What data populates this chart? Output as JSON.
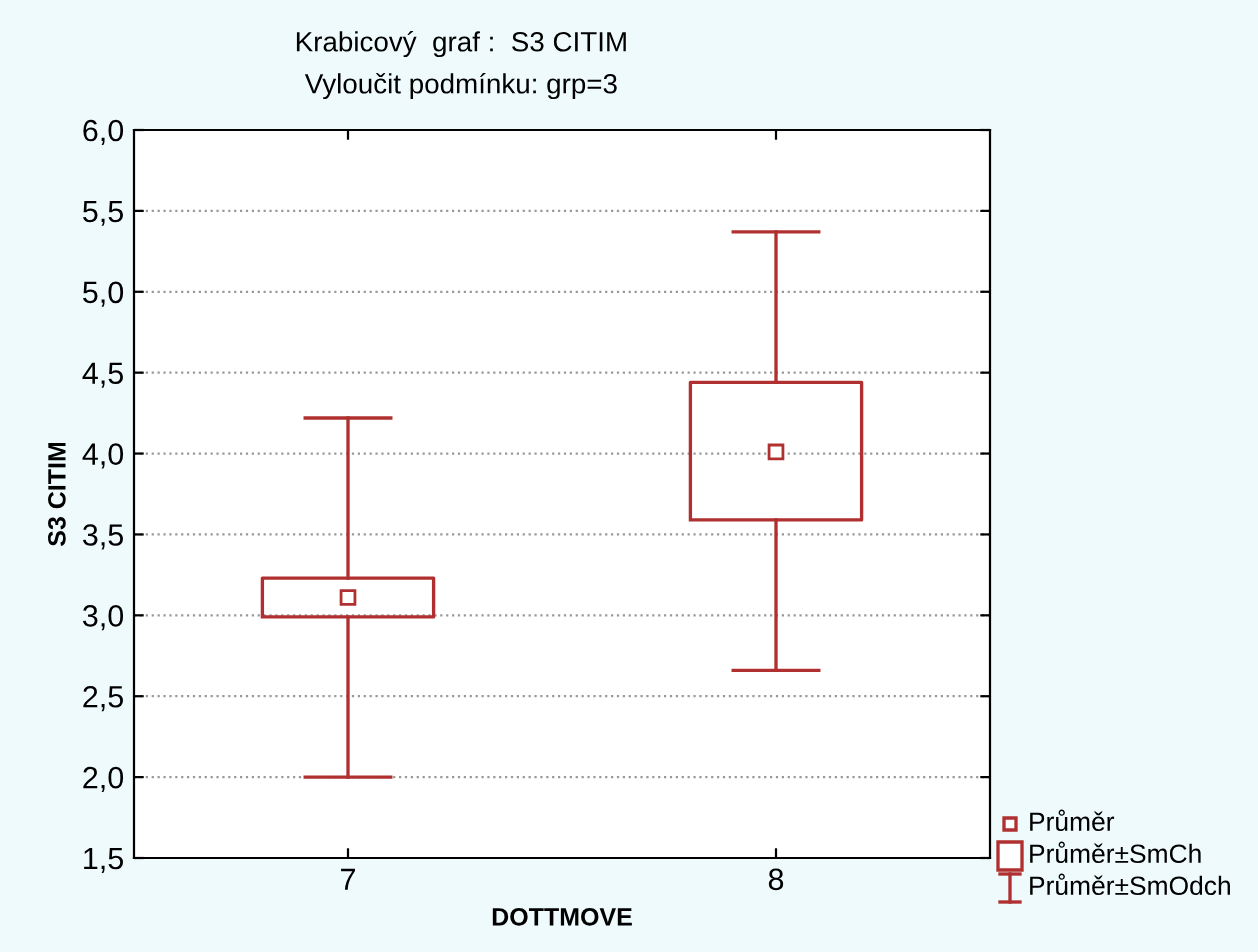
{
  "chart_data": {
    "type": "box",
    "title": "Krabicový  graf :  S3 CITIM",
    "subtitle": "Vyloučit podmínku: grp=3",
    "xlabel": "DOTTMOVE",
    "ylabel": "S3 CITIM",
    "categories": [
      "7",
      "8"
    ],
    "color": "#b03030",
    "boxes": [
      {
        "low": 2.0,
        "q1": 2.99,
        "median": 3.11,
        "q3": 3.23,
        "high": 4.22
      },
      {
        "low": 2.66,
        "q1": 3.59,
        "median": 4.01,
        "q3": 4.44,
        "high": 5.37
      }
    ],
    "ylim": [
      1.5,
      6.0
    ],
    "yticks": [
      {
        "value": 1.5,
        "label": "1,5"
      },
      {
        "value": 2.0,
        "label": "2,0"
      },
      {
        "value": 2.5,
        "label": "2,5"
      },
      {
        "value": 3.0,
        "label": "3,0"
      },
      {
        "value": 3.5,
        "label": "3,5"
      },
      {
        "value": 4.0,
        "label": "4,0"
      },
      {
        "value": 4.5,
        "label": "4,5"
      },
      {
        "value": 5.0,
        "label": "5,0"
      },
      {
        "value": 5.5,
        "label": "5,5"
      },
      {
        "value": 6.0,
        "label": "6,0"
      }
    ],
    "grid": "y",
    "marker": "square",
    "annotations": [
      "Průměr",
      "Průměr±SmCh",
      "Průměr±SmOdch"
    ]
  }
}
